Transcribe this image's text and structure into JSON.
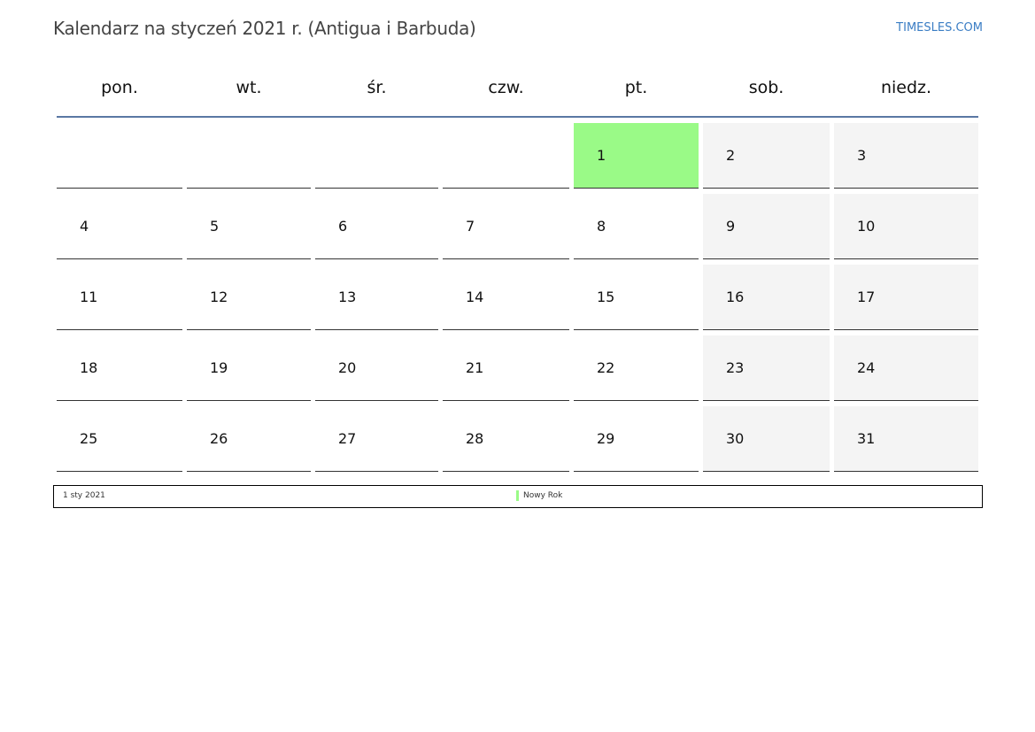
{
  "title": "Kalendarz na styczeń 2021 r. (Antigua i Barbuda)",
  "brand": "TIMESLES.COM",
  "weekdays": [
    "pon.",
    "wt.",
    "śr.",
    "czw.",
    "pt.",
    "sob.",
    "niedz."
  ],
  "first_weekday_offset": 4,
  "days_in_month": 31,
  "holiday_days": [
    1
  ],
  "colors": {
    "holiday": "#9afa87",
    "weekend": "#f4f4f4",
    "rule": "#5a78a3",
    "brand": "#3a7dc4"
  },
  "holidays": [
    {
      "date": "1 sty 2021",
      "name": "Nowy Rok"
    }
  ]
}
